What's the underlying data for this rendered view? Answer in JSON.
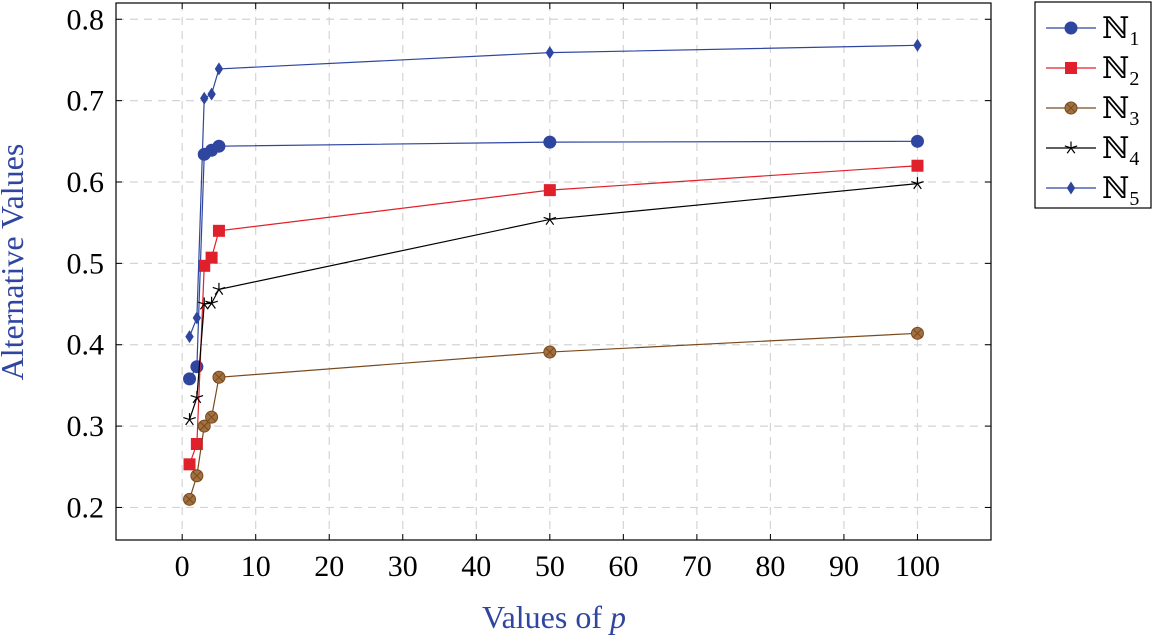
{
  "chart_data": {
    "type": "line",
    "title": "",
    "xlabel_prefix": "Values of ",
    "xlabel_var": "p",
    "ylabel": "Alternative Values",
    "xlim": [
      -9,
      110
    ],
    "ylim": [
      0.16,
      0.82
    ],
    "xticks": [
      0,
      10,
      20,
      30,
      40,
      50,
      60,
      70,
      80,
      90,
      100
    ],
    "yticks": [
      0.2,
      0.3,
      0.4,
      0.5,
      0.6,
      0.7,
      0.8
    ],
    "xtick_labels": [
      "0",
      "10",
      "20",
      "30",
      "40",
      "50",
      "60",
      "70",
      "80",
      "90",
      "100"
    ],
    "ytick_labels": [
      "0.2",
      "0.3",
      "0.4",
      "0.5",
      "0.6",
      "0.7",
      "0.8"
    ],
    "grid": true,
    "legend_position": "outside-top-right",
    "x": [
      1,
      2,
      3,
      4,
      5,
      50,
      100
    ],
    "series": [
      {
        "name": "ℕ",
        "sub": "1",
        "color": "#2f46a0",
        "marker": "circle",
        "values": [
          0.358,
          0.373,
          0.634,
          0.639,
          0.644,
          0.649,
          0.65
        ]
      },
      {
        "name": "ℕ",
        "sub": "2",
        "color": "#e0202a",
        "marker": "square",
        "values": [
          0.253,
          0.278,
          0.497,
          0.507,
          0.54,
          0.59,
          0.62
        ]
      },
      {
        "name": "ℕ",
        "sub": "3",
        "color": "#7a4a1e",
        "fill": "#a07040",
        "marker": "circle-x",
        "values": [
          0.21,
          0.239,
          0.3,
          0.311,
          0.36,
          0.391,
          0.414
        ]
      },
      {
        "name": "ℕ",
        "sub": "4",
        "color": "#000000",
        "marker": "star",
        "values": [
          0.308,
          0.335,
          0.45,
          0.451,
          0.468,
          0.554,
          0.598
        ]
      },
      {
        "name": "ℕ",
        "sub": "5",
        "color": "#2f46a0",
        "marker": "diamond",
        "values": [
          0.41,
          0.433,
          0.703,
          0.708,
          0.739,
          0.759,
          0.768
        ]
      }
    ]
  }
}
